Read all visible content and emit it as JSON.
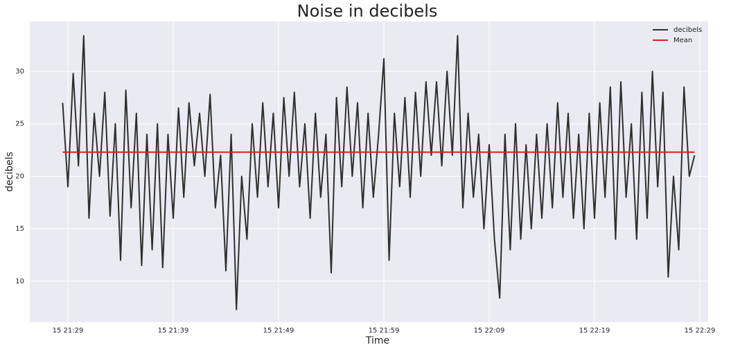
{
  "chart_data": {
    "type": "line",
    "title": "Noise in decibels",
    "x_label": "Time",
    "y_label": "decibels",
    "grid": true,
    "legend": "upper right",
    "xlim": [
      25.38,
      89.79
    ],
    "ylim": [
      6.1,
      34.75
    ],
    "xticks": [
      {
        "value": 29,
        "label": "15 21:29"
      },
      {
        "value": 39,
        "label": "15 21:39"
      },
      {
        "value": 49,
        "label": "15 21:49"
      },
      {
        "value": 59,
        "label": "15 21:59"
      },
      {
        "value": 69,
        "label": "15 22:09"
      },
      {
        "value": 79,
        "label": "15 22:19"
      },
      {
        "value": 89,
        "label": "15 22:29"
      }
    ],
    "yticks": [
      10,
      15,
      20,
      25,
      30
    ],
    "series": [
      {
        "name": "decibels",
        "color": "#2f2f2f",
        "x": [
          28.5,
          29,
          29.5,
          30,
          30.5,
          31,
          31.5,
          32,
          32.5,
          33,
          33.5,
          34,
          34.5,
          35,
          35.5,
          36,
          36.5,
          37,
          37.5,
          38,
          38.5,
          39,
          39.5,
          40,
          40.5,
          41,
          41.5,
          42,
          42.5,
          43,
          43.5,
          44,
          44.5,
          45,
          45.5,
          46,
          46.5,
          47,
          47.5,
          48,
          48.5,
          49,
          49.5,
          50,
          50.5,
          51,
          51.5,
          52,
          52.5,
          53,
          53.5,
          54,
          54.5,
          55,
          55.5,
          56,
          56.5,
          57,
          57.5,
          58,
          58.5,
          59,
          59.5,
          60,
          60.5,
          61,
          61.5,
          62,
          62.5,
          63,
          63.5,
          64,
          64.5,
          65,
          65.5,
          66,
          66.5,
          67,
          67.5,
          68,
          68.5,
          69,
          69.5,
          70,
          70.5,
          71,
          71.5,
          72,
          72.5,
          73,
          73.5,
          74,
          74.5,
          75,
          75.5,
          76,
          76.5,
          77,
          77.5,
          78,
          78.5,
          79,
          79.5,
          80,
          80.5,
          81,
          81.5,
          82,
          82.5,
          83,
          83.5,
          84,
          84.5,
          85,
          85.5,
          86,
          86.5,
          87,
          87.5,
          88,
          88.5
        ],
        "values": [
          27,
          19,
          29.8,
          21,
          33.4,
          16,
          26,
          20,
          28,
          16.2,
          25,
          12,
          28.2,
          17,
          26,
          11.5,
          24,
          13,
          25,
          11.3,
          24,
          16,
          26.5,
          18,
          27,
          21,
          26,
          20,
          27.8,
          17,
          22,
          11,
          24,
          7.3,
          20,
          14,
          25,
          18,
          27,
          19,
          26,
          17,
          27.5,
          20,
          28,
          19,
          25,
          16,
          26,
          18,
          24,
          10.8,
          27.5,
          19,
          28.5,
          20,
          27,
          17,
          26,
          18,
          24,
          31.2,
          12,
          26,
          19,
          27.5,
          18,
          28,
          20,
          29,
          22,
          29,
          21,
          30,
          22,
          33.4,
          17,
          26,
          18,
          24,
          15,
          23,
          14,
          8.4,
          24,
          13,
          25,
          14,
          23,
          15,
          24,
          16,
          25,
          17,
          27,
          18,
          26,
          16,
          24,
          15,
          26,
          16,
          27,
          18,
          28.5,
          14,
          29,
          18,
          25,
          14,
          28,
          16,
          30,
          19,
          28,
          10.4,
          20,
          13,
          28.5,
          20,
          22
        ]
      },
      {
        "name": "Mean",
        "color": "#e31a1c",
        "x": [
          28.5,
          88.5
        ],
        "values": [
          22.3,
          22.3
        ]
      }
    ]
  }
}
